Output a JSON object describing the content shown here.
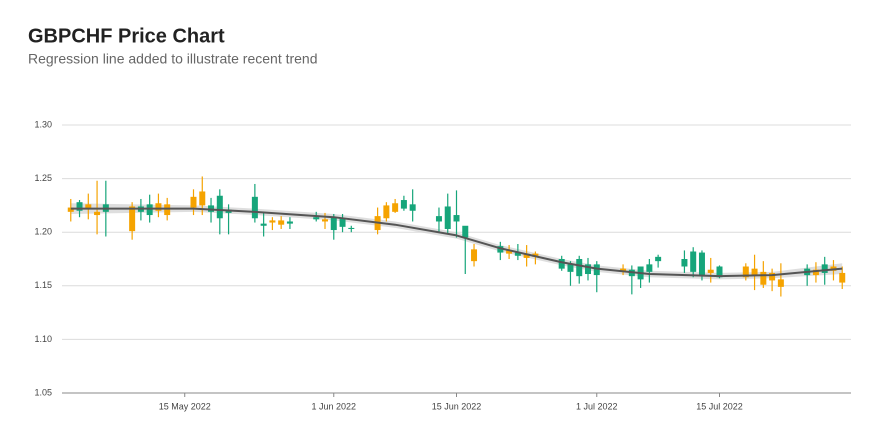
{
  "chart_data": {
    "type": "candlestick",
    "title": "GBPCHF Price Chart",
    "subtitle": "Regression line added to illustrate recent trend",
    "x": [
      "2022-05-02",
      "2022-05-03",
      "2022-05-04",
      "2022-05-05",
      "2022-05-06",
      "2022-05-09",
      "2022-05-10",
      "2022-05-11",
      "2022-05-12",
      "2022-05-13",
      "2022-05-16",
      "2022-05-17",
      "2022-05-18",
      "2022-05-19",
      "2022-05-20",
      "2022-05-23",
      "2022-05-24",
      "2022-05-25",
      "2022-05-26",
      "2022-05-27",
      "2022-05-30",
      "2022-05-31",
      "2022-06-01",
      "2022-06-02",
      "2022-06-03",
      "2022-06-06",
      "2022-06-07",
      "2022-06-08",
      "2022-06-09",
      "2022-06-10",
      "2022-06-13",
      "2022-06-14",
      "2022-06-15",
      "2022-06-16",
      "2022-06-17",
      "2022-06-20",
      "2022-06-21",
      "2022-06-22",
      "2022-06-23",
      "2022-06-24",
      "2022-06-27",
      "2022-06-28",
      "2022-06-29",
      "2022-06-30",
      "2022-07-01",
      "2022-07-04",
      "2022-07-05",
      "2022-07-06",
      "2022-07-07",
      "2022-07-08",
      "2022-07-11",
      "2022-07-12",
      "2022-07-13",
      "2022-07-14",
      "2022-07-15",
      "2022-07-18",
      "2022-07-19",
      "2022-07-20",
      "2022-07-21",
      "2022-07-22",
      "2022-07-25",
      "2022-07-26",
      "2022-07-27",
      "2022-07-28",
      "2022-07-29"
    ],
    "open": [
      1.223,
      1.22,
      1.226,
      1.219,
      1.219,
      1.224,
      1.219,
      1.216,
      1.227,
      1.226,
      1.233,
      1.238,
      1.219,
      1.213,
      1.218,
      1.213,
      1.206,
      1.211,
      1.211,
      1.208,
      1.212,
      1.212,
      1.202,
      1.205,
      1.203,
      1.215,
      1.225,
      1.227,
      1.222,
      1.22,
      1.21,
      1.203,
      1.21,
      1.195,
      1.184,
      1.181,
      1.183,
      1.178,
      1.18,
      1.18,
      1.166,
      1.163,
      1.159,
      1.161,
      1.16,
      1.166,
      1.159,
      1.156,
      1.163,
      1.173,
      1.168,
      1.163,
      1.16,
      1.165,
      1.158,
      1.168,
      1.166,
      1.163,
      1.162,
      1.156,
      1.16,
      1.165,
      1.162,
      1.168,
      1.162
    ],
    "high": [
      1.231,
      1.23,
      1.236,
      1.248,
      1.248,
      1.228,
      1.231,
      1.235,
      1.236,
      1.232,
      1.24,
      1.252,
      1.232,
      1.24,
      1.226,
      1.245,
      1.219,
      1.214,
      1.215,
      1.214,
      1.219,
      1.218,
      1.217,
      1.217,
      1.206,
      1.223,
      1.228,
      1.231,
      1.234,
      1.24,
      1.223,
      1.236,
      1.239,
      1.205,
      1.189,
      1.191,
      1.188,
      1.189,
      1.188,
      1.182,
      1.178,
      1.173,
      1.178,
      1.176,
      1.173,
      1.17,
      1.169,
      1.168,
      1.175,
      1.179,
      1.183,
      1.186,
      1.183,
      1.176,
      1.169,
      1.171,
      1.179,
      1.173,
      1.166,
      1.171,
      1.17,
      1.172,
      1.177,
      1.174,
      1.168
    ],
    "low": [
      1.21,
      1.214,
      1.212,
      1.198,
      1.196,
      1.193,
      1.211,
      1.209,
      1.214,
      1.211,
      1.216,
      1.216,
      1.209,
      1.198,
      1.198,
      1.209,
      1.196,
      1.202,
      1.203,
      1.203,
      1.21,
      1.203,
      1.193,
      1.2,
      1.2,
      1.198,
      1.21,
      1.218,
      1.22,
      1.21,
      1.2,
      1.198,
      1.195,
      1.161,
      1.168,
      1.174,
      1.175,
      1.174,
      1.168,
      1.17,
      1.164,
      1.15,
      1.152,
      1.155,
      1.144,
      1.16,
      1.142,
      1.148,
      1.153,
      1.167,
      1.162,
      1.158,
      1.155,
      1.153,
      1.157,
      1.155,
      1.146,
      1.148,
      1.145,
      1.14,
      1.15,
      1.153,
      1.151,
      1.155,
      1.147
    ],
    "close": [
      1.219,
      1.228,
      1.222,
      1.216,
      1.226,
      1.201,
      1.224,
      1.226,
      1.22,
      1.216,
      1.223,
      1.225,
      1.225,
      1.234,
      1.221,
      1.233,
      1.208,
      1.209,
      1.207,
      1.21,
      1.214,
      1.21,
      1.214,
      1.213,
      1.204,
      1.202,
      1.213,
      1.219,
      1.23,
      1.226,
      1.215,
      1.224,
      1.216,
      1.206,
      1.173,
      1.187,
      1.18,
      1.181,
      1.176,
      1.177,
      1.175,
      1.17,
      1.175,
      1.17,
      1.17,
      1.163,
      1.165,
      1.168,
      1.17,
      1.177,
      1.175,
      1.182,
      1.181,
      1.162,
      1.168,
      1.158,
      1.16,
      1.151,
      1.155,
      1.149,
      1.166,
      1.16,
      1.17,
      1.164,
      1.153
    ],
    "up_color": "#16a57a",
    "down_color": "#f5a300",
    "regression": {
      "x": [
        "2022-05-02",
        "2022-05-16",
        "2022-05-23",
        "2022-06-01",
        "2022-06-08",
        "2022-06-15",
        "2022-06-20",
        "2022-06-27",
        "2022-07-01",
        "2022-07-07",
        "2022-07-15",
        "2022-07-21",
        "2022-07-29"
      ],
      "values": [
        1.222,
        1.222,
        1.219,
        1.214,
        1.207,
        1.197,
        1.185,
        1.172,
        1.166,
        1.161,
        1.159,
        1.16,
        1.166
      ],
      "upper": [
        1.227,
        1.225,
        1.222,
        1.217,
        1.21,
        1.2,
        1.188,
        1.175,
        1.169,
        1.164,
        1.162,
        1.163,
        1.171
      ],
      "lower": [
        1.217,
        1.219,
        1.216,
        1.211,
        1.204,
        1.194,
        1.182,
        1.169,
        1.163,
        1.158,
        1.156,
        1.157,
        1.161
      ],
      "color": "#555555",
      "band_color": "#d0d0d0"
    },
    "xlim": [
      "2022-05-01",
      "2022-07-30"
    ],
    "xticks": [
      {
        "value": "2022-05-15",
        "label": "15 May 2022"
      },
      {
        "value": "2022-06-01",
        "label": "1 Jun 2022"
      },
      {
        "value": "2022-06-15",
        "label": "15 Jun 2022"
      },
      {
        "value": "2022-07-01",
        "label": "1 Jul 2022"
      },
      {
        "value": "2022-07-15",
        "label": "15 Jul 2022"
      }
    ],
    "ylim": [
      1.05,
      1.3
    ],
    "yticks": [
      {
        "value": 1.05,
        "label": "1.05"
      },
      {
        "value": 1.1,
        "label": "1.10"
      },
      {
        "value": 1.15,
        "label": "1.15"
      },
      {
        "value": 1.2,
        "label": "1.20"
      },
      {
        "value": 1.25,
        "label": "1.25"
      },
      {
        "value": 1.3,
        "label": "1.30"
      }
    ],
    "grid": true
  }
}
